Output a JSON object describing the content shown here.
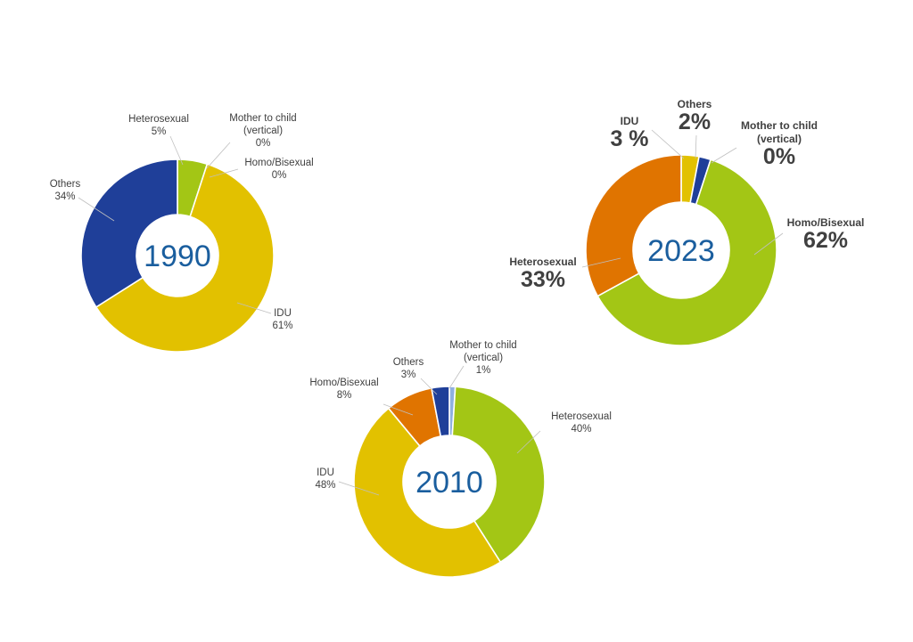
{
  "colors": {
    "IDU": "#e2c100",
    "Heterosexual": "#a3c615",
    "Homo/Bisexual": "#e07400",
    "Others": "#1f3f99",
    "Mother to child": "#8fb0e0",
    "year_text": "#1a5e9e"
  },
  "chart_data": [
    {
      "type": "pie",
      "center_label": "1990",
      "slices": [
        {
          "name": "Heterosexual",
          "value": 5,
          "label": [
            "Heterosexual",
            "5%"
          ],
          "color": "#a3c615"
        },
        {
          "name": "Mother to child",
          "value": 0,
          "label": [
            "Mother to child",
            "(vertical)",
            "0%"
          ],
          "color": "#8fb0e0"
        },
        {
          "name": "Homo/Bisexual",
          "value": 0,
          "label": [
            "Homo/Bisexual",
            "0%"
          ],
          "color": "#e07400"
        },
        {
          "name": "IDU",
          "value": 61,
          "label": [
            "IDU",
            "61%"
          ],
          "color": "#e2c100"
        },
        {
          "name": "Others",
          "value": 34,
          "label": [
            "Others",
            "34%"
          ],
          "color": "#1f3f99"
        }
      ]
    },
    {
      "type": "pie",
      "center_label": "2023",
      "slices": [
        {
          "name": "IDU",
          "value": 3,
          "label": [
            "IDU",
            "3 %"
          ],
          "color": "#e2c100"
        },
        {
          "name": "Others",
          "value": 2,
          "label": [
            "Others",
            "2%"
          ],
          "color": "#1f3f99"
        },
        {
          "name": "Mother to child",
          "value": 0,
          "label": [
            "Mother to child",
            "(vertical)",
            "0%"
          ],
          "color": "#8fb0e0"
        },
        {
          "name": "Homo/Bisexual",
          "value": 62,
          "label": [
            "Homo/Bisexual",
            "62%"
          ],
          "color": "#a3c615"
        },
        {
          "name": "Heterosexual",
          "value": 33,
          "label": [
            "Heterosexual",
            "33%"
          ],
          "color": "#e07400"
        }
      ]
    },
    {
      "type": "pie",
      "center_label": "2010",
      "slices": [
        {
          "name": "Mother to child",
          "value": 1,
          "label": [
            "Mother to child",
            "(vertical)",
            "1%"
          ],
          "color": "#8fb0e0"
        },
        {
          "name": "Heterosexual",
          "value": 40,
          "label": [
            "Heterosexual",
            "40%"
          ],
          "color": "#a3c615"
        },
        {
          "name": "IDU",
          "value": 48,
          "label": [
            "IDU",
            "48%"
          ],
          "color": "#e2c100"
        },
        {
          "name": "Homo/Bisexual",
          "value": 8,
          "label": [
            "Homo/Bisexual",
            "8%"
          ],
          "color": "#e07400"
        },
        {
          "name": "Others",
          "value": 3,
          "label": [
            "Others",
            "3%"
          ],
          "color": "#1f3f99"
        }
      ]
    }
  ]
}
